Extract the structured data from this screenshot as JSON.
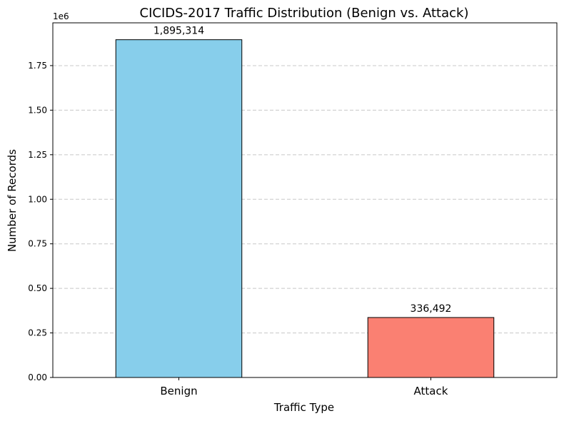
{
  "chart_data": {
    "type": "bar",
    "title": "CICIDS-2017 Traffic Distribution (Benign vs. Attack)",
    "xlabel": "Traffic Type",
    "ylabel": "Number of Records",
    "y_offset_label": "1e6",
    "categories": [
      "Benign",
      "Attack"
    ],
    "values": [
      1895314,
      336492
    ],
    "data_labels": [
      "1,895,314",
      "336,492"
    ],
    "colors": [
      "#87CEEB",
      "#FA8072"
    ],
    "ylim": [
      0,
      1990000
    ],
    "y_ticks": [
      0,
      250000,
      500000,
      750000,
      1000000,
      1250000,
      1500000,
      1750000
    ],
    "y_tick_labels": [
      "0.00",
      "0.25",
      "0.50",
      "0.75",
      "1.00",
      "1.25",
      "1.50",
      "1.75"
    ],
    "grid": "y-dashed",
    "legend": "none"
  }
}
